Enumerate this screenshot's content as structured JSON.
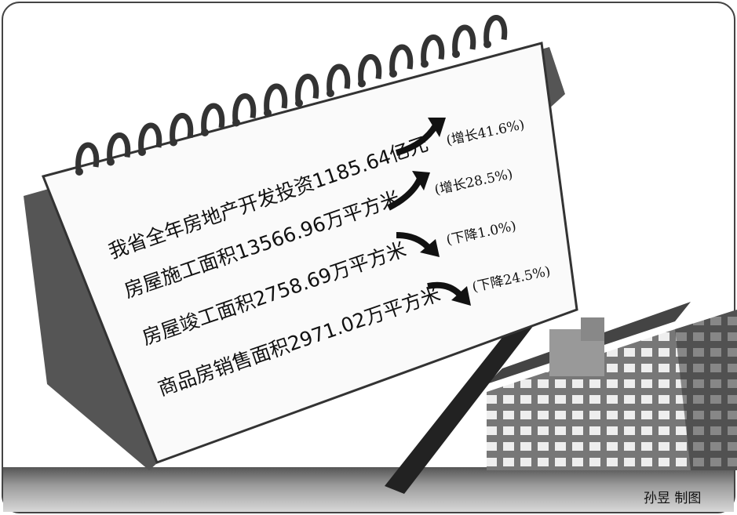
{
  "items": [
    {
      "label": "我省全年房地产开发投资1185.64亿元",
      "change": "(增长41.6%)"
    },
    {
      "label": "房屋施工面积13566.96万平方米",
      "change": "(增长28.5%)"
    },
    {
      "label": "房屋竣工面积2758.69万平方米",
      "change": "(下降1.0%)"
    },
    {
      "label": "商品房销售面积2971.02万平方米",
      "change": "(下降24.5%)"
    }
  ],
  "credit": "孙昱 制图"
}
